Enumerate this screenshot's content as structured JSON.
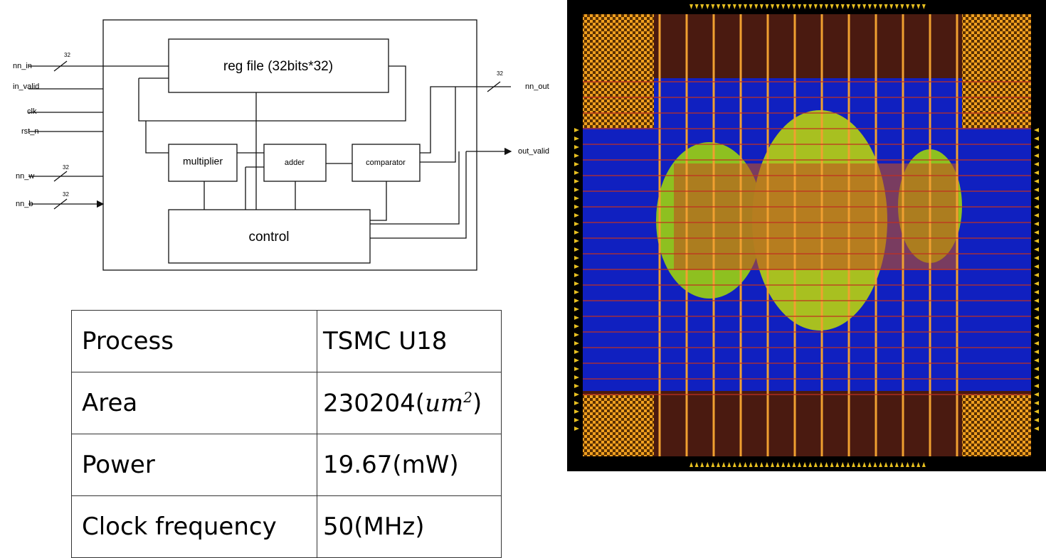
{
  "diagram": {
    "inputs": [
      {
        "label": "nn_in",
        "width": "32"
      },
      {
        "label": "in_valid"
      },
      {
        "label": "clk"
      },
      {
        "label": "rst_n"
      },
      {
        "label": "nn_w",
        "width": "32"
      },
      {
        "label": "nn_b",
        "width": "32"
      }
    ],
    "outputs": [
      {
        "label": "nn_out",
        "width": "32"
      },
      {
        "label": "out_valid"
      }
    ],
    "blocks": [
      "reg file (32bits*32)",
      "multiplier",
      "adder",
      "comparator",
      "control"
    ]
  },
  "table": {
    "rows": [
      [
        "Process",
        "TSMC U18"
      ],
      [
        "Area",
        [
          "230204(",
          "um",
          "2",
          ")"
        ]
      ],
      [
        "Power",
        "19.67(mW)"
      ],
      [
        "Clock frequency",
        "50(MHz)"
      ]
    ]
  }
}
